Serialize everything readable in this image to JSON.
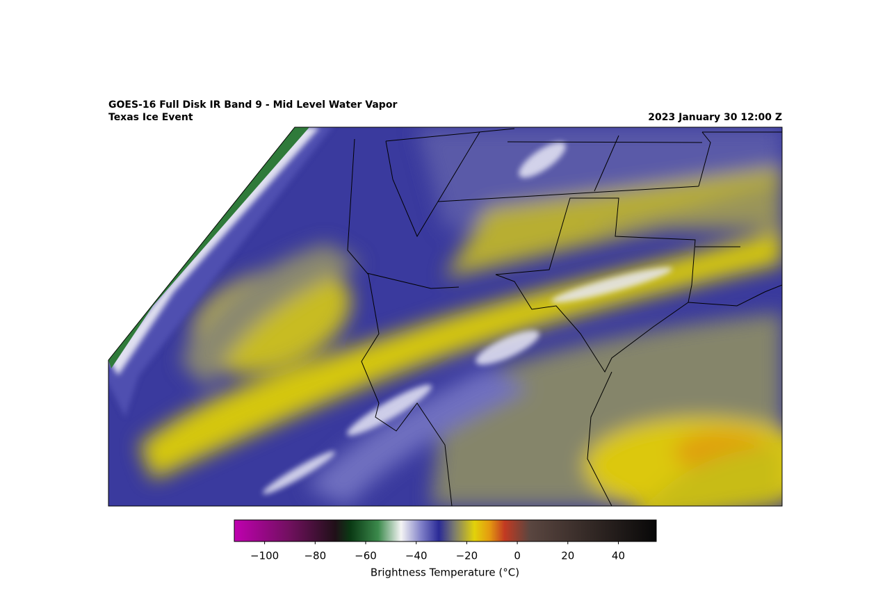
{
  "title": "GOES-16 Full Disk IR Band 9 - Mid Level Water Vapor",
  "subtitle": "Texas Ice Event",
  "timestamp": "2023 January 30 12:00 Z",
  "colorbar": {
    "label": "Brightness Temperature (°C)",
    "lim": [
      -112,
      55
    ],
    "ticks": [
      {
        "value": -100,
        "label": "−100"
      },
      {
        "value": -80,
        "label": "−80"
      },
      {
        "value": -60,
        "label": "−60"
      },
      {
        "value": -40,
        "label": "−40"
      },
      {
        "value": -20,
        "label": "−20"
      },
      0,
      20,
      40
    ],
    "stops": [
      {
        "value": -112,
        "color": "#c000b0"
      },
      {
        "value": -90,
        "color": "#70105e"
      },
      {
        "value": -72,
        "color": "#201018"
      },
      {
        "value": -66,
        "color": "#0a3a14"
      },
      {
        "value": -55,
        "color": "#3c8a4c"
      },
      {
        "value": -46,
        "color": "#f4f4f4"
      },
      {
        "value": -38,
        "color": "#8080c8"
      },
      {
        "value": -31,
        "color": "#2a2a96"
      },
      {
        "value": -25,
        "color": "#7a7a70"
      },
      {
        "value": -17,
        "color": "#e2d20a"
      },
      {
        "value": -11,
        "color": "#e49a10"
      },
      {
        "value": -5,
        "color": "#c23a22"
      },
      {
        "value": 5,
        "color": "#5a4640"
      },
      {
        "value": 55,
        "color": "#080808"
      }
    ]
  }
}
